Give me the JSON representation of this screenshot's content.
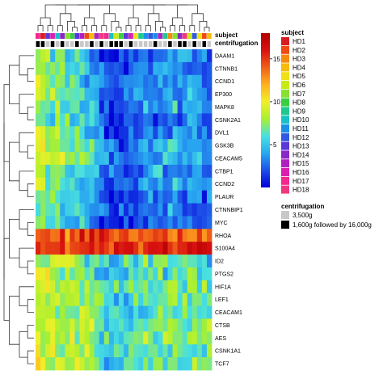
{
  "chart_data": {
    "type": "heatmap",
    "title": "",
    "annotation_labels": {
      "subject": "subject",
      "centrifugation": "centrifugation"
    },
    "genes": [
      "DAAM1",
      "CTNNB1",
      "CCND1",
      "EP300",
      "MAPK8",
      "CSNK2A1",
      "DVL1",
      "GSK3B",
      "CEACAM5",
      "CTBP1",
      "CCND2",
      "PLAUR",
      "CTNNBIP1",
      "MYC",
      "RHOA",
      "S100A4",
      "ID2",
      "PTGS2",
      "HIF1A",
      "LEF1",
      "CEACAM1",
      "CTSB",
      "AES",
      "CSNK1A1",
      "TCF7"
    ],
    "n_samples": 36,
    "colorbar": {
      "min": 0,
      "max": 18,
      "ticks": [
        5,
        10,
        15
      ],
      "colors": [
        "#0000d8",
        "#1d4fe8",
        "#28a8f0",
        "#48e0e0",
        "#a8f030",
        "#f0f028",
        "#ffb020",
        "#f06018",
        "#d81010",
        "#b00000"
      ]
    },
    "row_means": [
      3.5,
      4,
      4,
      4,
      4.5,
      3.5,
      4,
      4.5,
      5,
      4,
      4.5,
      3.5,
      3.5,
      3,
      14,
      15,
      6.5,
      6.5,
      7,
      6.5,
      6.5,
      7,
      7.5,
      7,
      7
    ],
    "column_effect": [
      4.5,
      4,
      3,
      3.5,
      3,
      2.5,
      2,
      2,
      1.5,
      1.5,
      1,
      0.5,
      0,
      -1.5,
      -2,
      -2.5,
      -2.5,
      -2.5,
      -2,
      -1.5,
      -1.5,
      -1,
      -0.5,
      -1,
      -1,
      -0.5,
      -0.5,
      0,
      0,
      -0.5,
      -0.5,
      0,
      0,
      -0.5,
      -0.5,
      -1
    ],
    "sample_subject_index": [
      16,
      0,
      12,
      15,
      9,
      13,
      6,
      7,
      12,
      14,
      1,
      3,
      14,
      17,
      16,
      9,
      5,
      7,
      12,
      15,
      4,
      8,
      10,
      11,
      10,
      14,
      8,
      2,
      6,
      13,
      17,
      5,
      11,
      4,
      1,
      3
    ],
    "sample_centrifugation_index": [
      1,
      1,
      0,
      1,
      0,
      1,
      0,
      0,
      1,
      0,
      0,
      1,
      0,
      1,
      0,
      1,
      1,
      1,
      0,
      1,
      0,
      0,
      0,
      0,
      1,
      0,
      0,
      1,
      0,
      1,
      1,
      0,
      1,
      0,
      1,
      0
    ],
    "legend_subject": {
      "title": "subject",
      "entries": [
        "HD1",
        "HD2",
        "HD3",
        "HD4",
        "HD5",
        "HD6",
        "HD7",
        "HD8",
        "HD9",
        "HD10",
        "HD11",
        "HD12",
        "HD13",
        "HD14",
        "HD15",
        "HD16",
        "HD17",
        "HD18"
      ],
      "colors": [
        "#d81b20",
        "#ee4a12",
        "#f58a0c",
        "#f5bc0a",
        "#f0e018",
        "#c8e818",
        "#88e030",
        "#38d040",
        "#20c890",
        "#18c0c8",
        "#1890e8",
        "#3058e0",
        "#5838d8",
        "#8828c8",
        "#b020c0",
        "#d820b0",
        "#f02890",
        "#f03880"
      ]
    },
    "legend_centrifugation": {
      "title": "centrifugation",
      "entries": [
        "3,500g",
        "1,600g followed by 16,000g"
      ],
      "colors": [
        "#c8c8c8",
        "#000000"
      ]
    }
  }
}
